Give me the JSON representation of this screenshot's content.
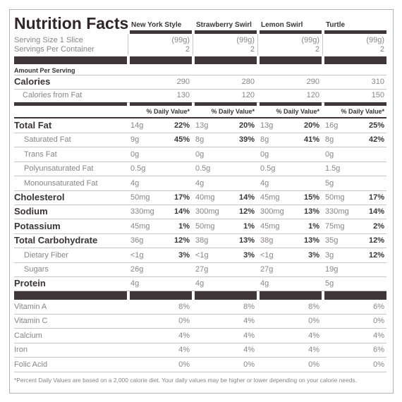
{
  "title": "Nutrition Facts",
  "columns": [
    "New York Style",
    "Strawberry Swirl",
    "Lemon Swirl",
    "Turtle"
  ],
  "serving_size": {
    "label": "Serving Size 1 Slice",
    "values": [
      "(99g)",
      "(99g)",
      "(99g)",
      "(99g)"
    ]
  },
  "servings": {
    "label": "Servings Per Container",
    "values": [
      "2",
      "2",
      "2",
      "2"
    ]
  },
  "amount_per_serving": "Amount Per Serving",
  "calories": {
    "label": "Calories",
    "values": [
      "290",
      "280",
      "290",
      "310"
    ]
  },
  "calories_from_fat": {
    "label": "Calories from Fat",
    "values": [
      "130",
      "120",
      "120",
      "150"
    ]
  },
  "dv_header": "% Daily Value*",
  "nutrients": [
    {
      "label": "Total Fat",
      "bold": true,
      "amounts": [
        "14g",
        "13g",
        "13g",
        "16g"
      ],
      "dv": [
        "22%",
        "20%",
        "20%",
        "25%"
      ]
    },
    {
      "label": "Saturated Fat",
      "bold": false,
      "amounts": [
        "9g",
        "8g",
        "8g",
        "8g"
      ],
      "dv": [
        "45%",
        "39%",
        "41%",
        "42%"
      ]
    },
    {
      "label": "Trans Fat",
      "bold": false,
      "amounts": [
        "0g",
        "0g",
        "0g",
        "0g"
      ],
      "dv": [
        null,
        null,
        null,
        null
      ]
    },
    {
      "label": "Polyunsaturated Fat",
      "bold": false,
      "amounts": [
        "0.5g",
        "0.5g",
        "0.5g",
        "1.5g"
      ],
      "dv": [
        null,
        null,
        null,
        null
      ]
    },
    {
      "label": "Monounsaturated Fat",
      "bold": false,
      "amounts": [
        "4g",
        "4g",
        "4g",
        "5g"
      ],
      "dv": [
        null,
        null,
        null,
        null
      ]
    },
    {
      "label": "Cholesterol",
      "bold": true,
      "amounts": [
        "50mg",
        "40mg",
        "45mg",
        "50mg"
      ],
      "dv": [
        "17%",
        "14%",
        "15%",
        "17%"
      ]
    },
    {
      "label": "Sodium",
      "bold": true,
      "amounts": [
        "330mg",
        "300mg",
        "300mg",
        "330mg"
      ],
      "dv": [
        "14%",
        "12%",
        "13%",
        "14%"
      ]
    },
    {
      "label": "Potassium",
      "bold": true,
      "amounts": [
        "45mg",
        "50mg",
        "45mg",
        "75mg"
      ],
      "dv": [
        "1%",
        "1%",
        "1%",
        "2%"
      ]
    },
    {
      "label": "Total Carbohydrate",
      "bold": true,
      "amounts": [
        "36g",
        "38g",
        "38g",
        "35g"
      ],
      "dv": [
        "12%",
        "13%",
        "13%",
        "12%"
      ]
    },
    {
      "label": "Dietary Fiber",
      "bold": false,
      "amounts": [
        "<1g",
        "<1g",
        "<1g",
        "3g"
      ],
      "dv": [
        "3%",
        "3%",
        "3%",
        "12%"
      ]
    },
    {
      "label": "Sugars",
      "bold": false,
      "amounts": [
        "26g",
        "27g",
        "27g",
        "19g"
      ],
      "dv": [
        null,
        null,
        null,
        null
      ]
    },
    {
      "label": "Protein",
      "bold": true,
      "amounts": [
        "4g",
        "4g",
        "4g",
        "5g"
      ],
      "dv": [
        null,
        null,
        null,
        null
      ]
    }
  ],
  "vitamins": [
    {
      "label": "Vitamin A",
      "values": [
        "8%",
        "8%",
        "8%",
        "6%"
      ]
    },
    {
      "label": "Vitamin C",
      "values": [
        "0%",
        "4%",
        "0%",
        "0%"
      ]
    },
    {
      "label": "Calcium",
      "values": [
        "4%",
        "4%",
        "4%",
        "4%"
      ]
    },
    {
      "label": "Iron",
      "values": [
        "4%",
        "4%",
        "4%",
        "6%"
      ]
    },
    {
      "label": "Folic Acid",
      "values": [
        "0%",
        "0%",
        "0%",
        "0%"
      ]
    }
  ],
  "footnote": "*Percent Daily Values are based on a 2,000 calorie diet. Your daily values may be higher or lower depending on your calorie needs."
}
